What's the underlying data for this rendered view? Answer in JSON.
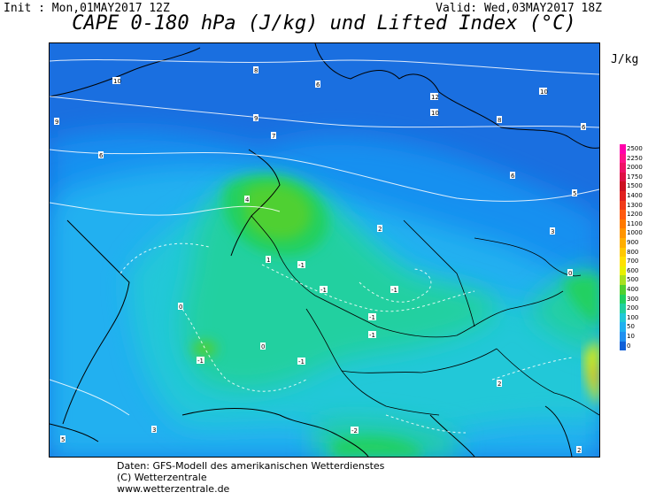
{
  "header": {
    "init": "Init : Mon,01MAY2017 12Z",
    "valid": "Valid: Wed,03MAY2017 18Z",
    "title": "CAPE 0-180 hPa (J/kg) und Lifted Index (°C)"
  },
  "legend": {
    "unit": "J/kg",
    "levels": [
      {
        "label": "2500",
        "color": "#ff00aa"
      },
      {
        "label": "2250",
        "color": "#ff1188"
      },
      {
        "label": "2000",
        "color": "#ee1166"
      },
      {
        "label": "1750",
        "color": "#dd1144"
      },
      {
        "label": "1500",
        "color": "#cc1122"
      },
      {
        "label": "1400",
        "color": "#e02020"
      },
      {
        "label": "1300",
        "color": "#f03a1a"
      },
      {
        "label": "1200",
        "color": "#ff5a10"
      },
      {
        "label": "1100",
        "color": "#ff7a00"
      },
      {
        "label": "1000",
        "color": "#ff9400"
      },
      {
        "label": "900",
        "color": "#ffae00"
      },
      {
        "label": "800",
        "color": "#ffc800"
      },
      {
        "label": "700",
        "color": "#ffe000"
      },
      {
        "label": "600",
        "color": "#e8f000"
      },
      {
        "label": "500",
        "color": "#a8e020"
      },
      {
        "label": "400",
        "color": "#50d030"
      },
      {
        "label": "300",
        "color": "#20d060"
      },
      {
        "label": "200",
        "color": "#20d0a0"
      },
      {
        "label": "100",
        "color": "#20c8d8"
      },
      {
        "label": "50",
        "color": "#20b0f0"
      },
      {
        "label": "10",
        "color": "#2090f0"
      },
      {
        "label": "0",
        "color": "#1060d8"
      }
    ]
  },
  "footer": {
    "line1": "Daten: GFS-Modell des amerikanischen Wetterdienstes",
    "line2": "(C) Wetterzentrale",
    "line3": "www.wetterzentrale.de"
  },
  "lifted_index_labels": [
    "10",
    "8",
    "6",
    "12",
    "10",
    "9",
    "8",
    "7",
    "6",
    "5",
    "4",
    "2",
    "1",
    "0",
    "-1",
    "-2",
    "3"
  ]
}
